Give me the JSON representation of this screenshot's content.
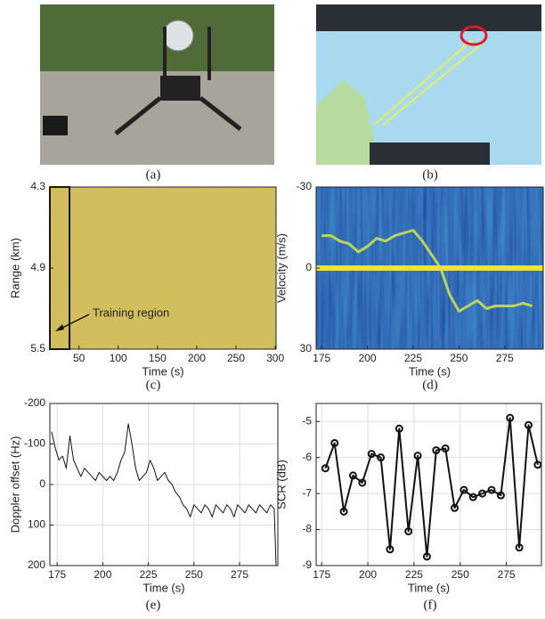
{
  "photos": [
    {
      "caption": "(a)"
    },
    {
      "caption": "(b)"
    }
  ],
  "chart_data": [
    {
      "type": "heatmap",
      "caption": "(c)",
      "xlabel": "Time (s)",
      "ylabel": "Range (km)",
      "color": "#e2b93b",
      "xlim": [
        13,
        301
      ],
      "xticks": [
        50,
        100,
        150,
        200,
        250,
        300
      ],
      "ylim": [
        5.5,
        4.3
      ],
      "yticks": [
        4.3,
        4.9,
        5.5
      ],
      "region": {
        "label": "Training region",
        "x": [
          13,
          38
        ]
      }
    },
    {
      "type": "spectrogram",
      "caption": "(d)",
      "xlabel": "Time (s)",
      "ylabel": "Velocity (m/s)",
      "color": "#d7e34a",
      "xlim": [
        172,
        296
      ],
      "xticks": [
        175,
        200,
        225,
        250,
        275
      ],
      "ylim": [
        30,
        -30
      ],
      "yticks": [
        -30,
        0,
        30
      ],
      "x": [
        175,
        180,
        185,
        190,
        195,
        200,
        205,
        210,
        215,
        220,
        225,
        230,
        235,
        240,
        245,
        250,
        255,
        260,
        265,
        270,
        275,
        280,
        285,
        290
      ],
      "values": [
        -12,
        -12,
        -10,
        -9,
        -6,
        -8,
        -11,
        -10,
        -12,
        -13,
        -14,
        -10,
        -5,
        0,
        10,
        16,
        14,
        12,
        15,
        14,
        14,
        14,
        13,
        14
      ]
    },
    {
      "type": "line",
      "caption": "(e)",
      "xlabel": "Time (s)",
      "ylabel": "Doppler offset (Hz)",
      "color": "#111111",
      "grid": true,
      "xlim": [
        171,
        296
      ],
      "xticks": [
        175,
        200,
        225,
        250,
        275
      ],
      "ylim": [
        200,
        -200
      ],
      "yticks": [
        -200,
        -100,
        0,
        100,
        200
      ],
      "x": [
        172,
        174,
        176,
        178,
        180,
        182,
        184,
        186,
        188,
        190,
        192,
        194,
        196,
        198,
        200,
        202,
        204,
        206,
        208,
        210,
        212,
        214,
        216,
        218,
        220,
        222,
        224,
        226,
        228,
        230,
        232,
        234,
        236,
        238,
        240,
        242,
        244,
        246,
        248,
        250,
        252,
        254,
        256,
        258,
        260,
        262,
        264,
        266,
        268,
        270,
        272,
        274,
        276,
        278,
        280,
        282,
        284,
        286,
        288,
        290,
        292,
        294,
        295
      ],
      "values": [
        -130,
        -90,
        -60,
        -70,
        -40,
        -120,
        -60,
        -40,
        -20,
        -40,
        -30,
        -20,
        -10,
        -30,
        -20,
        -10,
        -20,
        -10,
        -30,
        -60,
        -80,
        -150,
        -100,
        -40,
        -10,
        -20,
        -30,
        -60,
        -40,
        -10,
        -20,
        -30,
        -10,
        0,
        20,
        30,
        50,
        60,
        80,
        50,
        60,
        70,
        50,
        60,
        80,
        50,
        60,
        70,
        50,
        60,
        80,
        50,
        60,
        70,
        50,
        60,
        70,
        50,
        60,
        70,
        50,
        60,
        200
      ]
    },
    {
      "type": "line-markers",
      "caption": "(f)",
      "xlabel": "Time (s)",
      "ylabel": "SCR (dB)",
      "color": "#111111",
      "grid": true,
      "xlim": [
        172,
        294
      ],
      "xticks": [
        175,
        200,
        225,
        250,
        275
      ],
      "ylim": [
        -9,
        -4.5
      ],
      "yticks": [
        -9,
        -8,
        -7,
        -6,
        -5
      ],
      "x": [
        177,
        182,
        187,
        192,
        197,
        202,
        207,
        212,
        217,
        222,
        227,
        232,
        237,
        242,
        247,
        252,
        257,
        262,
        267,
        272,
        277,
        282,
        287,
        292
      ],
      "values": [
        -6.3,
        -5.6,
        -7.5,
        -6.5,
        -6.7,
        -5.9,
        -6.0,
        -8.55,
        -5.2,
        -8.05,
        -5.95,
        -8.75,
        -5.8,
        -5.75,
        -7.4,
        -6.9,
        -7.1,
        -7.0,
        -6.9,
        -7.05,
        -4.9,
        -8.5,
        -5.1,
        -6.2
      ]
    }
  ]
}
